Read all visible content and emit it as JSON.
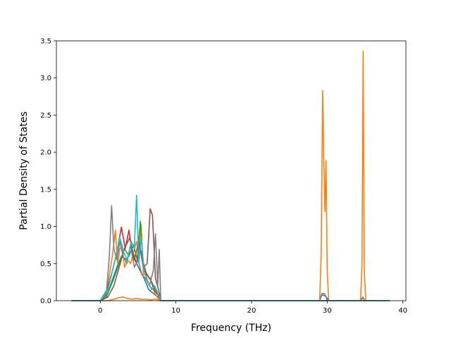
{
  "chart_data": {
    "type": "line",
    "xlabel": "Frequency (THz)",
    "ylabel": "Partial Density of States",
    "xlim": [
      -5.8,
      40.4
    ],
    "ylim": [
      0,
      3.5
    ],
    "xticks": [
      0,
      10,
      20,
      30,
      40
    ],
    "yticks": [
      0.0,
      0.5,
      1.0,
      1.5,
      2.0,
      2.5,
      3.0,
      3.5
    ],
    "xtick_labels": [
      "0",
      "10",
      "20",
      "30",
      "40"
    ],
    "ytick_labels": [
      "0.0",
      "0.5",
      "1.0",
      "1.5",
      "2.0",
      "2.5",
      "3.0",
      "3.5"
    ],
    "grid": false,
    "series": [
      {
        "color": "#1f77b4",
        "x": [
          -3.8,
          0.0,
          0.8,
          1.5,
          2.2,
          2.8,
          3.5,
          4.2,
          4.8,
          5.3,
          5.8,
          6.4,
          7.0,
          7.6,
          8.0,
          29.0,
          29.3,
          29.8,
          30.2,
          34.4,
          34.7,
          35.0,
          38.3
        ],
        "y": [
          0,
          0,
          0.05,
          0.25,
          0.45,
          0.6,
          0.55,
          0.7,
          0.5,
          0.4,
          0.3,
          0.15,
          0.1,
          0.05,
          0,
          0,
          0.08,
          0.06,
          0,
          0,
          0.04,
          0,
          0
        ]
      },
      {
        "color": "#ff7f0e",
        "x": [
          -3.8,
          0.0,
          0.8,
          1.2,
          1.6,
          2.0,
          2.3,
          2.6,
          2.9,
          3.2,
          3.6,
          4.0,
          4.4,
          4.8,
          5.1,
          5.4,
          5.7,
          6.0,
          6.5,
          7.0,
          7.5,
          8.0,
          29.0,
          29.2,
          29.4,
          29.55,
          29.7,
          29.85,
          30.0,
          30.2,
          34.4,
          34.6,
          34.75,
          34.9,
          35.1,
          38.3
        ],
        "y": [
          0,
          0,
          0.08,
          0.35,
          0.6,
          0.95,
          0.5,
          0.7,
          0.75,
          0.45,
          0.55,
          0.5,
          0.65,
          0.8,
          0.6,
          1.03,
          0.35,
          0.35,
          0.2,
          0.15,
          0.05,
          0,
          0,
          0.6,
          2.83,
          1.9,
          1.2,
          1.89,
          0.4,
          0,
          0,
          0.5,
          3.36,
          0.4,
          0,
          0
        ]
      },
      {
        "color": "#ff7f0e",
        "x": [
          -3.8,
          0.0,
          1.0,
          1.8,
          2.4,
          3.0,
          3.6,
          4.2,
          4.8,
          5.4,
          6.0,
          6.6,
          7.2,
          7.8,
          8.2,
          38.3
        ],
        "y": [
          0,
          0,
          0,
          0.02,
          0.04,
          0.05,
          0.03,
          0.02,
          0.03,
          0.02,
          0.02,
          0.01,
          0.02,
          0.01,
          0,
          0
        ]
      },
      {
        "color": "#2ca02c",
        "x": [
          -3.8,
          0.0,
          1.0,
          1.8,
          2.5,
          3.2,
          3.8,
          4.4,
          4.9,
          5.3,
          5.7,
          6.2,
          6.8,
          7.3,
          7.8,
          8.1,
          38.3
        ],
        "y": [
          0,
          0,
          0.1,
          0.3,
          0.5,
          0.7,
          0.6,
          0.75,
          0.55,
          1.07,
          0.45,
          0.35,
          0.25,
          0.15,
          0.05,
          0,
          0
        ]
      },
      {
        "color": "#d62728",
        "x": [
          -3.8,
          0.0,
          0.9,
          1.6,
          2.2,
          2.8,
          3.3,
          3.8,
          4.3,
          4.8,
          5.2,
          5.6,
          6.1,
          6.6,
          7.1,
          7.6,
          8.0,
          38.3
        ],
        "y": [
          0,
          0,
          0.15,
          0.4,
          0.65,
          0.99,
          0.7,
          0.95,
          0.6,
          0.5,
          0.75,
          0.55,
          0.35,
          0.3,
          0.15,
          0.08,
          0,
          0
        ]
      },
      {
        "color": "#8c564b",
        "x": [
          -3.8,
          0.0,
          1.0,
          1.8,
          2.5,
          3.2,
          3.9,
          4.5,
          5.1,
          5.7,
          6.2,
          6.6,
          6.9,
          7.3,
          7.7,
          8.0,
          38.3
        ],
        "y": [
          0,
          0,
          0.05,
          0.2,
          0.45,
          0.7,
          0.85,
          0.55,
          0.8,
          0.45,
          0.5,
          1.24,
          1.15,
          0.3,
          0.15,
          0,
          0
        ]
      },
      {
        "color": "#7f7f7f",
        "x": [
          -3.8,
          0.0,
          0.8,
          1.2,
          1.5,
          1.8,
          2.2,
          2.6,
          3.0,
          3.5,
          4.0,
          4.5,
          5.0,
          5.5,
          6.0,
          6.5,
          7.0,
          7.3,
          7.6,
          7.8,
          8.0,
          29.0,
          29.3,
          29.7,
          30.0,
          34.4,
          34.7,
          35.0,
          38.3
        ],
        "y": [
          0,
          0,
          0.1,
          0.6,
          1.28,
          0.7,
          0.55,
          0.8,
          0.6,
          0.5,
          0.75,
          0.45,
          0.55,
          0.35,
          0.3,
          0.2,
          0.4,
          0.9,
          0.2,
          0.69,
          0,
          0,
          0.1,
          0.09,
          0,
          0,
          0.05,
          0,
          0
        ]
      },
      {
        "color": "#17becf",
        "x": [
          -3.8,
          0.0,
          1.0,
          1.6,
          2.1,
          2.6,
          3.1,
          3.6,
          4.1,
          4.5,
          4.8,
          5.1,
          5.4,
          5.8,
          6.3,
          6.8,
          7.2,
          7.6,
          8.0,
          38.3
        ],
        "y": [
          0,
          0,
          0.15,
          0.4,
          0.6,
          0.85,
          0.65,
          0.55,
          0.8,
          0.7,
          1.42,
          0.5,
          0.85,
          0.4,
          0.25,
          0.15,
          0.2,
          0.1,
          0,
          0
        ]
      }
    ]
  }
}
